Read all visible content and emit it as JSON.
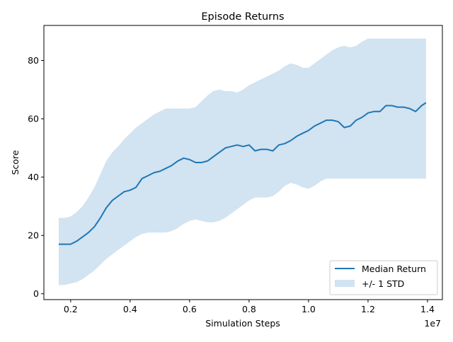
{
  "chart_data": {
    "type": "area",
    "title": "Episode Returns",
    "xlabel": "Simulation Steps",
    "ylabel": "Score",
    "x_offset_label": "1e7",
    "xlim": [
      1100000,
      14500000
    ],
    "ylim": [
      -2,
      92
    ],
    "x_ticks": [
      2000000,
      4000000,
      6000000,
      8000000,
      10000000,
      12000000,
      14000000
    ],
    "x_tick_labels": [
      "0.2",
      "0.4",
      "0.6",
      "0.8",
      "1.0",
      "1.2",
      "1.4"
    ],
    "y_ticks": [
      0,
      20,
      40,
      60,
      80
    ],
    "y_tick_labels": [
      "0",
      "20",
      "40",
      "60",
      "80"
    ],
    "legend_position": "lower-right",
    "grid": false,
    "colors": {
      "line": "#1f77b4",
      "band": "#a6c8e3"
    },
    "x": [
      1600000,
      1800000,
      2000000,
      2200000,
      2400000,
      2600000,
      2800000,
      3000000,
      3200000,
      3400000,
      3600000,
      3800000,
      4000000,
      4200000,
      4400000,
      4600000,
      4800000,
      5000000,
      5200000,
      5400000,
      5600000,
      5800000,
      6000000,
      6200000,
      6400000,
      6600000,
      6800000,
      7000000,
      7200000,
      7400000,
      7600000,
      7800000,
      8000000,
      8200000,
      8400000,
      8600000,
      8800000,
      9000000,
      9200000,
      9400000,
      9600000,
      9800000,
      10000000,
      10200000,
      10400000,
      10600000,
      10800000,
      11000000,
      11200000,
      11400000,
      11600000,
      11800000,
      12000000,
      12200000,
      12400000,
      12600000,
      12800000,
      13000000,
      13200000,
      13400000,
      13600000,
      13800000,
      13950000
    ],
    "series": [
      {
        "name": "Median Return",
        "values": [
          17,
          17,
          17,
          18,
          19.5,
          21,
          23,
          26,
          29.5,
          32,
          33.5,
          35,
          35.5,
          36.5,
          39.5,
          40.5,
          41.5,
          42,
          43,
          44,
          45.5,
          46.5,
          46,
          45,
          45,
          45.5,
          47,
          48.5,
          50,
          50.5,
          51,
          50.5,
          51,
          49,
          49.5,
          49.5,
          49,
          51,
          51.5,
          52.5,
          54,
          55,
          56,
          57.5,
          58.5,
          59.5,
          59.5,
          59,
          57,
          57.5,
          59.5,
          60.5,
          62,
          62.5,
          62.5,
          64.5,
          64.5,
          64,
          64,
          63.5,
          62.5,
          64.5,
          65.5
        ]
      },
      {
        "name": "+/- 1 STD",
        "upper": [
          26,
          26,
          26.5,
          28,
          30,
          33,
          36.5,
          41,
          45.5,
          48.5,
          50.5,
          53,
          55,
          57,
          58.5,
          60,
          61.5,
          62.5,
          63.5,
          63.5,
          63.5,
          63.5,
          63.5,
          64,
          66,
          68,
          69.5,
          70,
          69.5,
          69.5,
          69,
          70,
          71.5,
          72.5,
          73.5,
          74.5,
          75.5,
          76.5,
          78,
          79,
          78.5,
          77.5,
          77.5,
          79,
          80.5,
          82,
          83.5,
          84.5,
          85,
          84.5,
          85,
          86.5,
          87.5,
          87.5,
          87.5,
          87.5,
          87.5,
          87.5,
          87.5,
          87.5,
          87.5,
          87.5,
          87.5
        ],
        "lower": [
          3,
          3,
          3.5,
          4,
          5,
          6.5,
          8,
          10,
          12,
          13.5,
          15,
          16.5,
          18,
          19.5,
          20.5,
          21,
          21,
          21,
          21,
          21.5,
          22.5,
          24,
          25,
          25.5,
          25,
          24.5,
          24.5,
          25,
          26,
          27.5,
          29,
          30.5,
          32,
          33,
          33,
          33,
          33.5,
          35,
          37,
          38,
          37.5,
          36.5,
          36,
          37,
          38.5,
          39.5,
          39.5,
          39.5,
          39.5,
          39.5,
          39.5,
          39.5,
          39.5,
          39.5,
          39.5,
          39.5,
          39.5,
          39.5,
          39.5,
          39.5,
          39.5,
          39.5,
          39.5
        ]
      }
    ]
  }
}
